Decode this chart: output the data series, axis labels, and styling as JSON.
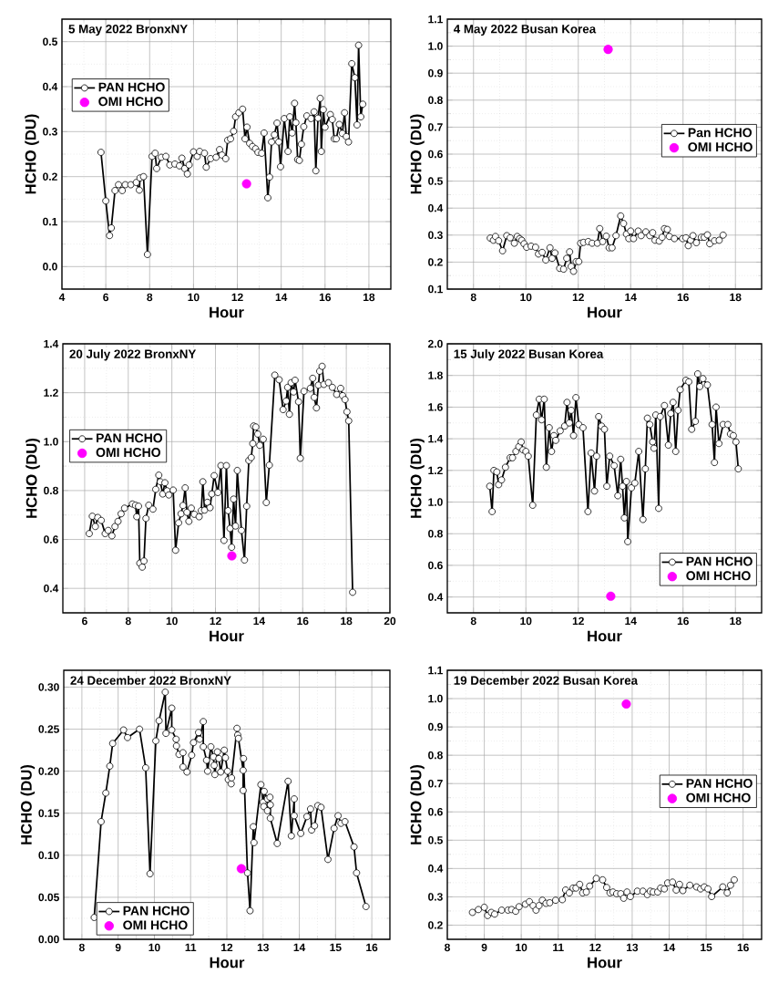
{
  "chart_data": [
    {
      "type": "line",
      "title": "5 May 2022 BronxNY",
      "xlabel": "Hour",
      "ylabel": "HCHO (DU)",
      "xlim": [
        4,
        19
      ],
      "ylim": [
        -0.05,
        0.55
      ],
      "xticks": [
        4,
        6,
        8,
        10,
        12,
        14,
        16,
        18
      ],
      "yticks": [
        {
          "value": 0,
          "label": "0.0"
        },
        0.1,
        0.2,
        0.3,
        0.4,
        0.5
      ],
      "grid": true,
      "legend": "top left",
      "series": [
        {
          "name": "PAN HCHO",
          "color": "#000000",
          "marker": "circle",
          "x": [
            5.78,
            6.0,
            6.17,
            6.25,
            6.42,
            6.58,
            6.75,
            6.89,
            7.14,
            7.39,
            7.53,
            7.56,
            7.72,
            7.9,
            8.11,
            8.25,
            8.32,
            8.53,
            8.74,
            8.92,
            9.15,
            9.36,
            9.47,
            9.6,
            9.72,
            9.8,
            10.0,
            10.17,
            10.28,
            10.5,
            10.58,
            10.78,
            11.03,
            11.19,
            11.3,
            11.47,
            11.56,
            11.69,
            11.83,
            11.92,
            12.07,
            12.24,
            12.35,
            12.44,
            12.56,
            12.69,
            12.83,
            12.94,
            13.11,
            13.22,
            13.39,
            13.47,
            13.56,
            13.69,
            13.81,
            13.89,
            13.97,
            14.14,
            14.31,
            14.39,
            14.5,
            14.61,
            14.67,
            14.75,
            14.83,
            14.92,
            15.03,
            15.17,
            15.36,
            15.5,
            15.58,
            15.68,
            15.78,
            15.83,
            15.92,
            16.0,
            16.24,
            16.33,
            16.42,
            16.51,
            16.65,
            16.79,
            16.89,
            16.97,
            17.07,
            17.22,
            17.36,
            17.46,
            17.53,
            17.63,
            17.72
          ],
          "values": [
            0.254,
            0.146,
            0.069,
            0.086,
            0.169,
            0.182,
            0.169,
            0.182,
            0.182,
            0.187,
            0.17,
            0.197,
            0.2,
            0.027,
            0.245,
            0.252,
            0.218,
            0.243,
            0.245,
            0.226,
            0.228,
            0.224,
            0.241,
            0.218,
            0.206,
            0.226,
            0.255,
            0.245,
            0.256,
            0.252,
            0.221,
            0.24,
            0.243,
            0.26,
            0.248,
            0.24,
            0.281,
            0.284,
            0.301,
            0.333,
            0.342,
            0.35,
            0.284,
            0.31,
            0.274,
            0.267,
            0.262,
            0.254,
            0.252,
            0.297,
            0.153,
            0.199,
            0.277,
            0.293,
            0.319,
            0.277,
            0.222,
            0.329,
            0.256,
            0.333,
            0.297,
            0.363,
            0.32,
            0.238,
            0.236,
            0.272,
            0.311,
            0.335,
            0.329,
            0.344,
            0.213,
            0.33,
            0.374,
            0.256,
            0.349,
            0.31,
            0.338,
            0.327,
            0.284,
            0.284,
            0.316,
            0.296,
            0.342,
            0.289,
            0.277,
            0.451,
            0.42,
            0.315,
            0.492,
            0.333,
            0.361
          ]
        },
        {
          "name": "OMI HCHO",
          "type": "scatter",
          "color": "#ff00ff",
          "marker": "circle",
          "x": [
            12.42
          ],
          "values": [
            0.184
          ]
        }
      ]
    },
    {
      "type": "line",
      "title": "4 May 2022 Busan Korea",
      "xlabel": "Hour",
      "ylabel": "HCHO (DU)",
      "xlim": [
        7,
        19
      ],
      "ylim": [
        0.1,
        1.1
      ],
      "xticks": [
        8,
        10,
        12,
        14,
        16,
        18
      ],
      "yticks": [
        0.1,
        0.2,
        0.3,
        0.4,
        0.5,
        0.6,
        0.7,
        0.8,
        0.9,
        {
          "value": 1,
          "label": "1.0"
        },
        1.1
      ],
      "grid": true,
      "legend": "right",
      "series": [
        {
          "name": "Pan HCHO",
          "color": "#000000",
          "marker": "circle",
          "x": [
            8.64,
            8.76,
            8.84,
            8.96,
            9.11,
            9.27,
            9.4,
            9.56,
            9.67,
            9.76,
            9.84,
            9.93,
            10.03,
            10.2,
            10.37,
            10.48,
            10.62,
            10.76,
            10.92,
            11.0,
            11.11,
            11.29,
            11.44,
            11.56,
            11.67,
            11.73,
            11.82,
            11.92,
            12.02,
            12.09,
            12.2,
            12.38,
            12.53,
            12.73,
            12.82,
            12.93,
            13.07,
            13.18,
            13.29,
            13.44,
            13.62,
            13.73,
            13.84,
            13.93,
            14.0,
            14.11,
            14.29,
            14.4,
            14.58,
            14.73,
            14.84,
            14.93,
            15.09,
            15.2,
            15.29,
            15.4,
            15.48,
            15.67,
            15.98,
            16.11,
            16.2,
            16.29,
            16.38,
            16.51,
            16.7,
            16.81,
            16.93,
            17.02,
            17.2,
            17.38,
            17.53
          ],
          "values": [
            0.289,
            0.281,
            0.295,
            0.279,
            0.242,
            0.298,
            0.29,
            0.27,
            0.295,
            0.287,
            0.281,
            0.268,
            0.255,
            0.259,
            0.255,
            0.23,
            0.236,
            0.208,
            0.253,
            0.214,
            0.234,
            0.177,
            0.174,
            0.214,
            0.238,
            0.184,
            0.166,
            0.202,
            0.202,
            0.27,
            0.273,
            0.276,
            0.27,
            0.27,
            0.324,
            0.276,
            0.296,
            0.253,
            0.253,
            0.298,
            0.371,
            0.343,
            0.304,
            0.287,
            0.315,
            0.287,
            0.315,
            0.298,
            0.312,
            0.298,
            0.309,
            0.281,
            0.278,
            0.292,
            0.324,
            0.321,
            0.295,
            0.287,
            0.287,
            0.29,
            0.261,
            0.281,
            0.298,
            0.272,
            0.292,
            0.292,
            0.301,
            0.268,
            0.279,
            0.281,
            0.3
          ]
        },
        {
          "name": "OMI HCHO",
          "type": "scatter",
          "color": "#ff00ff",
          "marker": "circle",
          "x": [
            13.14
          ],
          "values": [
            0.988
          ]
        }
      ]
    },
    {
      "type": "line",
      "title": "20 July 2022 BronxNY",
      "xlabel": "Hour",
      "ylabel": "HCHO (DU)",
      "xlim": [
        5,
        20
      ],
      "ylim": [
        0.3,
        1.4
      ],
      "xticks": [
        6,
        8,
        10,
        12,
        14,
        16,
        18,
        20
      ],
      "yticks": [
        0.4,
        0.6,
        0.8,
        {
          "value": 1,
          "label": "1.0"
        },
        1.2,
        1.4
      ],
      "grid": true,
      "legend": "left",
      "series": [
        {
          "name": "PAN HCHO",
          "color": "#000000",
          "marker": "circle",
          "x": [
            6.21,
            6.35,
            6.49,
            6.6,
            6.76,
            6.94,
            7.08,
            7.25,
            7.39,
            7.53,
            7.67,
            7.83,
            8.19,
            8.33,
            8.39,
            8.47,
            8.53,
            8.64,
            8.72,
            8.81,
            8.94,
            9.13,
            9.26,
            9.4,
            9.47,
            9.58,
            9.68,
            9.78,
            9.86,
            10.06,
            10.17,
            10.31,
            10.42,
            10.51,
            10.61,
            10.69,
            10.78,
            10.89,
            11.03,
            11.25,
            11.35,
            11.42,
            11.5,
            11.63,
            11.75,
            11.83,
            11.94,
            12.11,
            12.25,
            12.39,
            12.5,
            12.58,
            12.67,
            12.74,
            12.83,
            12.92,
            13.0,
            13.19,
            13.33,
            13.43,
            13.53,
            13.64,
            13.71,
            13.75,
            13.85,
            13.94,
            14.03,
            14.19,
            14.33,
            14.47,
            14.72,
            14.92,
            15.1,
            15.24,
            15.31,
            15.39,
            15.47,
            15.58,
            15.65,
            15.81,
            15.89,
            16.06,
            16.35,
            16.46,
            16.53,
            16.63,
            16.72,
            16.78,
            16.89,
            16.97,
            17.18,
            17.36,
            17.56,
            17.74,
            17.83,
            17.94,
            18.03,
            18.11,
            18.29
          ],
          "values": [
            0.624,
            0.695,
            0.653,
            0.69,
            0.678,
            0.624,
            0.637,
            0.615,
            0.653,
            0.674,
            0.705,
            0.728,
            0.745,
            0.74,
            0.693,
            0.736,
            0.503,
            0.487,
            0.512,
            0.686,
            0.74,
            0.724,
            0.805,
            0.863,
            0.836,
            0.786,
            0.832,
            0.799,
            0.782,
            0.802,
            0.556,
            0.668,
            0.705,
            0.739,
            0.811,
            0.711,
            0.674,
            0.728,
            0.703,
            0.693,
            0.718,
            0.836,
            0.72,
            0.752,
            0.73,
            0.786,
            0.861,
            0.792,
            0.902,
            0.596,
            0.902,
            0.718,
            0.645,
            0.568,
            0.765,
            0.655,
            0.882,
            0.637,
            0.516,
            0.736,
            0.923,
            0.935,
            0.992,
            1.064,
            1.06,
            1.031,
            0.985,
            1.01,
            0.751,
            0.904,
            1.272,
            1.253,
            1.131,
            1.166,
            1.222,
            1.112,
            1.241,
            1.203,
            1.251,
            1.163,
            0.932,
            1.206,
            1.218,
            1.259,
            1.181,
            1.138,
            1.231,
            1.288,
            1.308,
            1.234,
            1.241,
            1.222,
            1.193,
            1.218,
            1.188,
            1.172,
            1.122,
            1.085,
            0.384
          ]
        },
        {
          "name": "OMI HCHO",
          "type": "scatter",
          "color": "#ff00ff",
          "marker": "circle",
          "x": [
            12.75
          ],
          "values": [
            0.533
          ]
        }
      ]
    },
    {
      "type": "line",
      "title": "15 July 2022 Busan Korea",
      "xlabel": "Hour",
      "ylabel": "HCHO (DU)",
      "xlim": [
        7,
        19
      ],
      "ylim": [
        0.3,
        2.0
      ],
      "xticks": [
        8,
        10,
        12,
        14,
        16,
        18
      ],
      "yticks": [
        0.4,
        0.6,
        0.8,
        {
          "value": 1,
          "label": "1.0"
        },
        1.2,
        1.4,
        1.6,
        1.8,
        {
          "value": 2,
          "label": "2.0"
        }
      ],
      "grid": true,
      "legend": "bottom right",
      "series": [
        {
          "name": "PAN HCHO",
          "color": "#000000",
          "marker": "circle",
          "x": [
            8.62,
            8.71,
            8.78,
            8.89,
            8.96,
            9.07,
            9.22,
            9.4,
            9.49,
            9.62,
            9.73,
            9.82,
            9.89,
            10.0,
            10.09,
            10.26,
            10.4,
            10.51,
            10.6,
            10.7,
            10.78,
            10.89,
            10.98,
            11.07,
            11.14,
            11.31,
            11.48,
            11.57,
            11.66,
            11.73,
            11.82,
            11.91,
            12.02,
            12.18,
            12.37,
            12.49,
            12.62,
            12.7,
            12.78,
            12.89,
            13.0,
            13.09,
            13.2,
            13.37,
            13.51,
            13.62,
            13.69,
            13.76,
            13.84,
            13.89,
            14.03,
            14.16,
            14.31,
            14.47,
            14.56,
            14.64,
            14.73,
            14.84,
            14.89,
            14.96,
            15.07,
            15.13,
            15.29,
            15.44,
            15.53,
            15.62,
            15.72,
            15.81,
            15.89,
            16.11,
            16.22,
            16.33,
            16.47,
            16.56,
            16.64,
            16.76,
            16.93,
            17.11,
            17.2,
            17.26,
            17.37,
            17.53,
            17.71,
            17.81,
            17.92,
            18.02,
            18.11
          ],
          "values": [
            1.1,
            0.94,
            1.2,
            1.19,
            1.11,
            1.14,
            1.22,
            1.28,
            1.28,
            1.32,
            1.35,
            1.38,
            1.33,
            1.32,
            1.29,
            0.98,
            1.55,
            1.65,
            1.52,
            1.65,
            1.22,
            1.47,
            1.32,
            1.42,
            1.39,
            1.45,
            1.48,
            1.63,
            1.5,
            1.58,
            1.42,
            1.66,
            1.49,
            1.47,
            0.94,
            1.31,
            1.07,
            1.29,
            1.54,
            1.48,
            1.46,
            1.1,
            1.29,
            1.23,
            1.04,
            1.27,
            1.1,
            0.9,
            1.13,
            0.75,
            1.09,
            1.12,
            1.32,
            0.89,
            1.21,
            1.53,
            1.49,
            1.38,
            1.34,
            1.55,
            0.96,
            1.54,
            1.61,
            1.36,
            1.56,
            1.63,
            1.32,
            1.58,
            1.71,
            1.77,
            1.76,
            1.46,
            1.51,
            1.81,
            1.73,
            1.78,
            1.74,
            1.49,
            1.25,
            1.6,
            1.37,
            1.49,
            1.49,
            1.43,
            1.42,
            1.38,
            1.21
          ]
        },
        {
          "name": "OMI HCHO",
          "type": "scatter",
          "color": "#ff00ff",
          "marker": "circle",
          "x": [
            13.24
          ],
          "values": [
            0.405
          ]
        }
      ]
    },
    {
      "type": "line",
      "title": "24 December 2022 BronxNY",
      "xlabel": "Hour",
      "ylabel": "HCHO (DU)",
      "xlim": [
        7.5,
        16.5
      ],
      "ylim": [
        0,
        0.32
      ],
      "xticks": [
        8,
        9,
        10,
        11,
        12,
        13,
        14,
        15,
        16
      ],
      "yticks": [
        {
          "value": 0,
          "label": "0.00"
        },
        0.05,
        {
          "value": 0.1,
          "label": "0.10"
        },
        0.15,
        {
          "value": 0.2,
          "label": "0.20"
        },
        0.25,
        {
          "value": 0.3,
          "label": "0.30"
        }
      ],
      "grid": true,
      "legend": "bottom left",
      "series": [
        {
          "name": "PAN HCHO",
          "color": "#000000",
          "marker": "circle",
          "x": [
            8.34,
            8.53,
            8.66,
            8.77,
            8.85,
            9.15,
            9.26,
            9.59,
            9.76,
            9.88,
            10.04,
            10.13,
            10.3,
            10.32,
            10.48,
            10.48,
            10.6,
            10.61,
            10.68,
            10.79,
            10.79,
            10.9,
            11.03,
            11.08,
            11.22,
            11.25,
            11.35,
            11.35,
            11.44,
            11.47,
            11.56,
            11.63,
            11.65,
            11.67,
            11.74,
            11.78,
            11.83,
            11.93,
            11.96,
            12.02,
            12.04,
            12.12,
            12.13,
            12.28,
            12.3,
            12.32,
            12.45,
            12.45,
            12.46,
            12.57,
            12.64,
            12.73,
            12.75,
            12.94,
            13.0,
            13.02,
            13.03,
            13.12,
            13.12,
            13.19,
            13.2,
            13.2,
            13.39,
            13.69,
            13.78,
            13.86,
            13.86,
            14.04,
            14.21,
            14.31,
            14.34,
            14.42,
            14.51,
            14.6,
            14.79,
            14.96,
            15.07,
            15.15,
            15.26,
            15.51,
            15.58,
            15.84
          ],
          "values": [
            0.026,
            0.14,
            0.174,
            0.206,
            0.233,
            0.249,
            0.24,
            0.25,
            0.204,
            0.078,
            0.236,
            0.26,
            0.294,
            0.245,
            0.275,
            0.249,
            0.238,
            0.23,
            0.22,
            0.222,
            0.205,
            0.199,
            0.219,
            0.234,
            0.246,
            0.238,
            0.259,
            0.229,
            0.213,
            0.2,
            0.229,
            0.217,
            0.207,
            0.196,
            0.223,
            0.215,
            0.199,
            0.225,
            0.216,
            0.2,
            0.19,
            0.185,
            0.192,
            0.251,
            0.243,
            0.239,
            0.201,
            0.177,
            0.215,
            0.079,
            0.034,
            0.134,
            0.115,
            0.184,
            0.163,
            0.158,
            0.176,
            0.167,
            0.153,
            0.169,
            0.16,
            0.144,
            0.114,
            0.188,
            0.123,
            0.167,
            0.147,
            0.126,
            0.146,
            0.155,
            0.13,
            0.135,
            0.159,
            0.157,
            0.095,
            0.132,
            0.147,
            0.138,
            0.14,
            0.11,
            0.079,
            0.039
          ]
        },
        {
          "name": "OMI HCHO",
          "type": "scatter",
          "color": "#ff00ff",
          "marker": "circle",
          "x": [
            12.4
          ],
          "values": [
            0.084
          ]
        }
      ]
    },
    {
      "type": "line",
      "title": "19 December 2022 Busan Korea",
      "xlabel": "Hour",
      "ylabel": "HCHO (DU)",
      "xlim": [
        8,
        16.5
      ],
      "ylim": [
        0.15,
        1.1
      ],
      "xticks": [
        8,
        9,
        10,
        11,
        12,
        13,
        14,
        15,
        16
      ],
      "yticks": [
        0.2,
        0.3,
        0.4,
        0.5,
        0.6,
        0.7,
        0.8,
        0.9,
        {
          "value": 1,
          "label": "1.0"
        },
        1.1
      ],
      "grid": true,
      "legend": "right",
      "series": [
        {
          "name": "PAN HCHO",
          "color": "#000000",
          "marker": "circle",
          "x": [
            8.68,
            8.84,
            9.0,
            9.09,
            9.19,
            9.28,
            9.47,
            9.64,
            9.74,
            9.85,
            9.94,
            10.11,
            10.22,
            10.32,
            10.4,
            10.48,
            10.57,
            10.67,
            10.77,
            10.93,
            11.11,
            11.2,
            11.3,
            11.4,
            11.48,
            11.58,
            11.66,
            11.76,
            11.85,
            12.03,
            12.2,
            12.31,
            12.4,
            12.48,
            12.58,
            12.69,
            12.77,
            12.86,
            12.95,
            13.14,
            13.29,
            13.41,
            13.49,
            13.57,
            13.69,
            13.77,
            13.87,
            13.96,
            14.09,
            14.19,
            14.28,
            14.37,
            14.56,
            14.74,
            14.85,
            14.95,
            15.05,
            15.15,
            15.45,
            15.57,
            15.66,
            15.76
          ],
          "values": [
            0.245,
            0.255,
            0.263,
            0.234,
            0.245,
            0.239,
            0.253,
            0.253,
            0.255,
            0.249,
            0.265,
            0.274,
            0.283,
            0.269,
            0.253,
            0.269,
            0.288,
            0.277,
            0.279,
            0.288,
            0.29,
            0.324,
            0.314,
            0.331,
            0.331,
            0.344,
            0.314,
            0.317,
            0.338,
            0.365,
            0.36,
            0.333,
            0.314,
            0.317,
            0.311,
            0.311,
            0.295,
            0.317,
            0.301,
            0.32,
            0.32,
            0.308,
            0.32,
            0.317,
            0.317,
            0.331,
            0.328,
            0.349,
            0.352,
            0.324,
            0.344,
            0.322,
            0.341,
            0.335,
            0.328,
            0.335,
            0.328,
            0.301,
            0.335,
            0.314,
            0.341,
            0.36
          ]
        },
        {
          "name": "OMI HCHO",
          "type": "scatter",
          "color": "#ff00ff",
          "marker": "circle",
          "x": [
            12.84
          ],
          "values": [
            0.981
          ]
        }
      ]
    }
  ]
}
